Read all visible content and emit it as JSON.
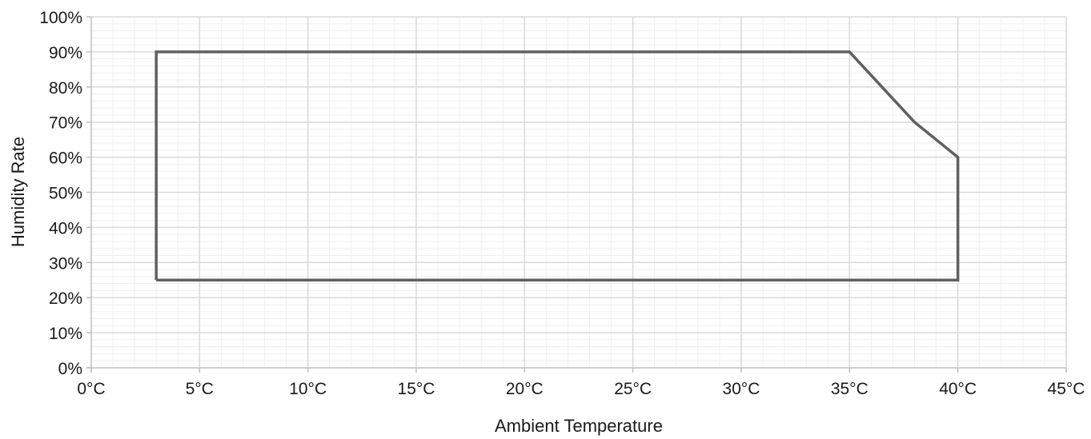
{
  "chart_data": {
    "type": "line",
    "title": "",
    "xlabel": "Ambient Temperature",
    "ylabel": "Humidity Rate",
    "x_ticks": [
      "0°C",
      "5°C",
      "10°C",
      "15°C",
      "20°C",
      "25°C",
      "30°C",
      "35°C",
      "40°C",
      "45°C"
    ],
    "y_ticks": [
      "0%",
      "10%",
      "20%",
      "30%",
      "40%",
      "50%",
      "60%",
      "70%",
      "80%",
      "90%",
      "100%"
    ],
    "xlim": [
      0,
      45
    ],
    "ylim": [
      0,
      100
    ],
    "x_unit": "°C",
    "y_unit": "%",
    "grid": true,
    "series": [
      {
        "x": [
          3,
          3,
          35,
          38,
          40,
          40,
          3
        ],
        "y": [
          25,
          90,
          90,
          70,
          60,
          25,
          25
        ],
        "color": "#606060"
      }
    ],
    "colors": {
      "line": "#606060",
      "major_grid": "#d9d9d9",
      "minor_grid": "#efefef",
      "axis": "#bfbfbf"
    }
  }
}
